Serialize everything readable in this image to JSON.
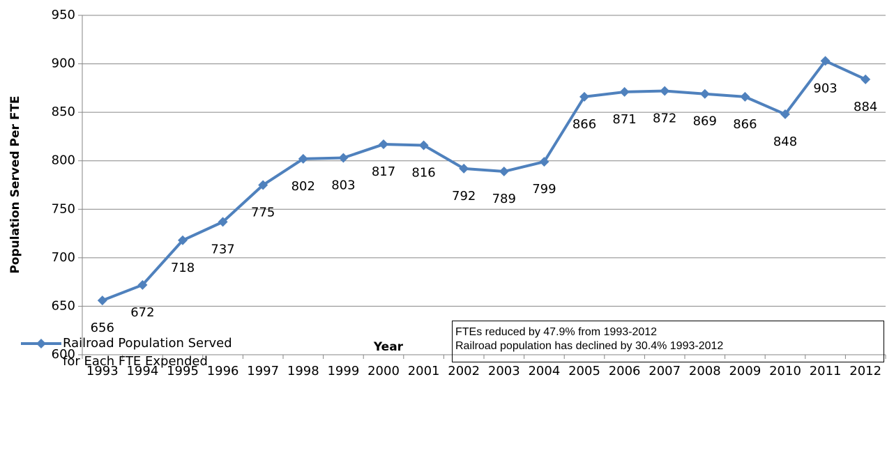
{
  "chart_data": {
    "type": "line",
    "x_label": "Year",
    "y_label": "Population Served Per FTE",
    "categories": [
      "1993",
      "1994",
      "1995",
      "1996",
      "1997",
      "1998",
      "1999",
      "2000",
      "2001",
      "2002",
      "2003",
      "2004",
      "2005",
      "2006",
      "2007",
      "2008",
      "2009",
      "2010",
      "2011",
      "2012"
    ],
    "series": [
      {
        "name": "Railroad Population Served for Each FTE Expended",
        "color": "#4f81bd",
        "values": [
          656,
          672,
          718,
          737,
          775,
          802,
          803,
          817,
          816,
          792,
          789,
          799,
          866,
          871,
          872,
          869,
          866,
          848,
          903,
          884
        ]
      }
    ],
    "ylim": [
      600,
      950
    ],
    "yticks": [
      600,
      650,
      700,
      750,
      800,
      850,
      900,
      950
    ],
    "grid": true,
    "annotations": [
      "FTEs reduced by 47.9% from 1993-2012",
      "Railroad population has declined by 30.4% 1993-2012"
    ]
  }
}
